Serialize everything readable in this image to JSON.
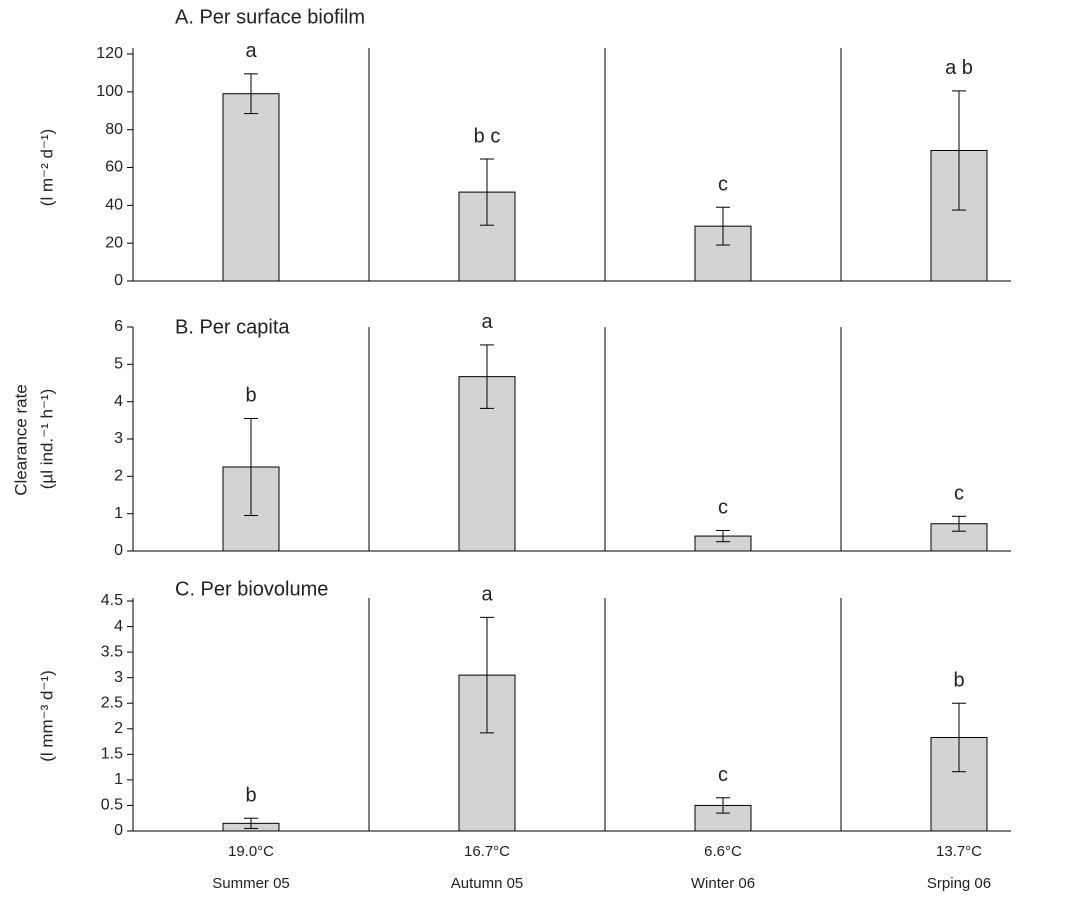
{
  "shared_ylabel": "Clearance rate",
  "chart_data": [
    {
      "type": "bar",
      "title": "A.  Per surface biofilm",
      "ylabel": "(l m⁻² d⁻¹)",
      "values": [
        99,
        47,
        29,
        69
      ],
      "errors": [
        10.5,
        17.5,
        10,
        31.5
      ],
      "annotations": [
        "a",
        "b c",
        "c",
        "a b"
      ],
      "color": "#d3d3d3",
      "ylim": [
        0,
        120
      ],
      "yticks": [
        0,
        20,
        40,
        60,
        80,
        100,
        120
      ]
    },
    {
      "type": "bar",
      "title": "B.  Per capita",
      "ylabel": "(µl ind.⁻¹ h⁻¹)",
      "values": [
        2.25,
        4.67,
        0.4,
        0.73
      ],
      "errors": [
        1.3,
        0.85,
        0.15,
        0.2
      ],
      "annotations": [
        "b",
        "a",
        "c",
        "c"
      ],
      "color": "#d3d3d3",
      "ylim": [
        0,
        6
      ],
      "yticks": [
        0,
        1,
        2,
        3,
        4,
        5,
        6
      ]
    },
    {
      "type": "bar",
      "title": "C.  Per biovolume",
      "ylabel": "(l mm⁻³ d⁻¹)",
      "values": [
        0.15,
        3.05,
        0.5,
        1.83
      ],
      "errors": [
        0.1,
        1.13,
        0.15,
        0.67
      ],
      "annotations": [
        "b",
        "a",
        "c",
        "b"
      ],
      "color": "#d3d3d3",
      "ylim": [
        0,
        4.5
      ],
      "yticks": [
        0,
        0.5,
        1,
        1.5,
        2,
        2.5,
        3,
        3.5,
        4,
        4.5
      ],
      "temperatures": [
        "19.0°C",
        "16.7°C",
        "6.6°C",
        "13.7°C"
      ],
      "categories": [
        "Summer 05",
        "Autumn 05",
        "Winter 06",
        "Srping 06"
      ]
    }
  ]
}
